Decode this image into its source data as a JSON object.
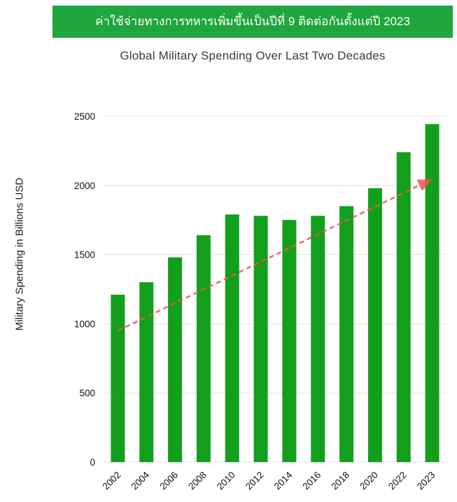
{
  "banner": {
    "text": "ค่าใช้จ่ายทางการทหารเพิ่มขึ้นเป็นปีที่ 9 ติดต่อกันตั้งแต่ปี 2023",
    "bg_color": "#1fa63c",
    "text_color": "#ffffff"
  },
  "chart_data": {
    "type": "bar",
    "title": "Global Military Spending Over Last Two Decades",
    "categories": [
      "2002",
      "2004",
      "2006",
      "2008",
      "2010",
      "2012",
      "2014",
      "2016",
      "2018",
      "2020",
      "2022",
      "2023"
    ],
    "values": [
      1210,
      1300,
      1480,
      1640,
      1790,
      1780,
      1750,
      1780,
      1850,
      1980,
      2240,
      2443
    ],
    "xlabel": "",
    "ylabel": "Military Spending in Billions USD",
    "ylim": [
      0,
      2500
    ],
    "yticks": [
      0,
      500,
      1000,
      1500,
      2000,
      2500
    ],
    "grid": true,
    "legend_position": "none",
    "bar_color": "#12a01c",
    "gridline_color": "#e3e3e3",
    "tick_color": "#111111",
    "trend_arrow": {
      "color": "#f4534e",
      "style": "dashed",
      "start_value": 950,
      "end_value": 2040
    }
  }
}
